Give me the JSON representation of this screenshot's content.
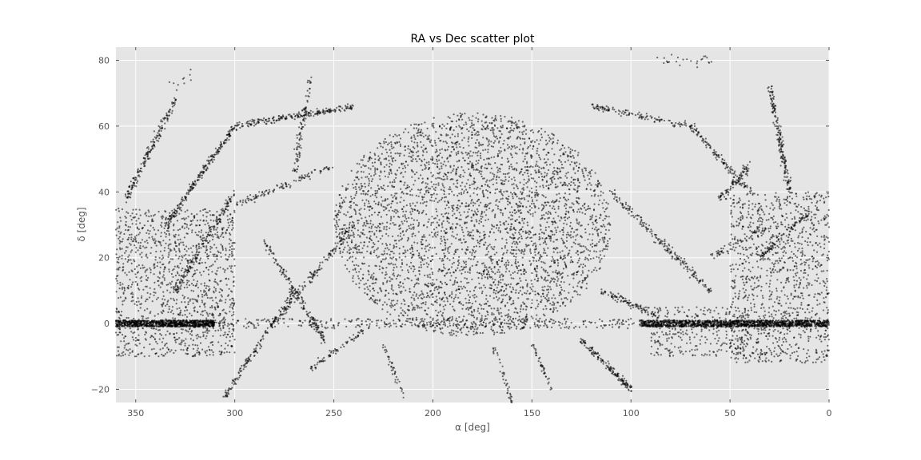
{
  "chart_data": {
    "type": "scatter",
    "title": "RA vs Dec scatter plot",
    "xlabel": "α [deg]",
    "ylabel": "δ [deg]",
    "xlim": [
      360,
      0
    ],
    "ylim": [
      -24,
      84
    ],
    "x_inverted": true,
    "grid": true,
    "legend": "none",
    "xticks": [
      350,
      300,
      250,
      200,
      150,
      100,
      50,
      0
    ],
    "yticks": [
      -20,
      0,
      20,
      40,
      60,
      80
    ],
    "colors": {
      "background": "#e5e5e5",
      "grid": "#ffffff",
      "point": "#000000",
      "text": "#555555"
    },
    "clusters": [
      {
        "name": "central-blob",
        "shape": "ellipse",
        "center": [
          180,
          30
        ],
        "radius": [
          70,
          34
        ],
        "count": 3800
      },
      {
        "name": "equator-band-left",
        "shape": "band",
        "x": [
          310,
          360
        ],
        "y": [
          -1,
          1
        ],
        "count": 900
      },
      {
        "name": "equator-band-right",
        "shape": "band",
        "x": [
          0,
          95
        ],
        "y": [
          -1,
          1
        ],
        "count": 1400
      },
      {
        "name": "equator-sparse",
        "shape": "band",
        "x": [
          95,
          310
        ],
        "y": [
          -1.5,
          1.5
        ],
        "count": 350
      },
      {
        "name": "left-field",
        "shape": "band",
        "x": [
          300,
          360
        ],
        "y": [
          -10,
          35
        ],
        "count": 1300
      },
      {
        "name": "right-field",
        "shape": "band",
        "x": [
          0,
          50
        ],
        "y": [
          -12,
          40
        ],
        "count": 1100
      },
      {
        "name": "right-lower-field",
        "shape": "band",
        "x": [
          40,
          90
        ],
        "y": [
          -10,
          5
        ],
        "count": 300
      }
    ],
    "streams": [
      {
        "from": [
          355,
          38
        ],
        "to": [
          330,
          68
        ],
        "count": 180,
        "width": 1.2
      },
      {
        "from": [
          335,
          30
        ],
        "to": [
          300,
          60
        ],
        "count": 220,
        "width": 1.0
      },
      {
        "from": [
          300,
          60
        ],
        "to": [
          240,
          66
        ],
        "count": 220,
        "width": 0.8
      },
      {
        "from": [
          330,
          10
        ],
        "to": [
          300,
          40
        ],
        "count": 150,
        "width": 1.2
      },
      {
        "from": [
          305,
          -22
        ],
        "to": [
          270,
          10
        ],
        "count": 150,
        "width": 1.0
      },
      {
        "from": [
          280,
          0
        ],
        "to": [
          240,
          30
        ],
        "count": 150,
        "width": 1.0
      },
      {
        "from": [
          285,
          25
        ],
        "to": [
          255,
          -5
        ],
        "count": 160,
        "width": 1.0
      },
      {
        "from": [
          270,
          45
        ],
        "to": [
          262,
          75
        ],
        "count": 90,
        "width": 1.2
      },
      {
        "from": [
          300,
          36
        ],
        "to": [
          250,
          48
        ],
        "count": 110,
        "width": 0.9
      },
      {
        "from": [
          262,
          -14
        ],
        "to": [
          235,
          -2
        ],
        "count": 70,
        "width": 0.9
      },
      {
        "from": [
          215,
          -22
        ],
        "to": [
          225,
          -6
        ],
        "count": 40,
        "width": 0.8
      },
      {
        "from": [
          160,
          -24
        ],
        "to": [
          170,
          -6
        ],
        "count": 40,
        "width": 0.8
      },
      {
        "from": [
          140,
          -20
        ],
        "to": [
          150,
          -6
        ],
        "count": 40,
        "width": 0.8
      },
      {
        "from": [
          125,
          -5
        ],
        "to": [
          100,
          -20
        ],
        "count": 150,
        "width": 0.9
      },
      {
        "from": [
          115,
          10
        ],
        "to": [
          85,
          2
        ],
        "count": 110,
        "width": 1.0
      },
      {
        "from": [
          110,
          40
        ],
        "to": [
          60,
          10
        ],
        "count": 190,
        "width": 1.2
      },
      {
        "from": [
          120,
          66
        ],
        "to": [
          70,
          60
        ],
        "count": 120,
        "width": 0.8
      },
      {
        "from": [
          70,
          60
        ],
        "to": [
          40,
          40
        ],
        "count": 120,
        "width": 1.0
      },
      {
        "from": [
          55,
          38
        ],
        "to": [
          40,
          48
        ],
        "count": 90,
        "width": 1.2
      },
      {
        "from": [
          30,
          72
        ],
        "to": [
          20,
          40
        ],
        "count": 180,
        "width": 1.2
      },
      {
        "from": [
          35,
          20
        ],
        "to": [
          10,
          34
        ],
        "count": 100,
        "width": 1.0
      },
      {
        "from": [
          60,
          20
        ],
        "to": [
          30,
          30
        ],
        "count": 70,
        "width": 1.0
      },
      {
        "from": [
          90,
          80
        ],
        "to": [
          60,
          80
        ],
        "count": 25,
        "width": 2.0
      },
      {
        "from": [
          335,
          72
        ],
        "to": [
          320,
          75
        ],
        "count": 10,
        "width": 2.0
      }
    ]
  }
}
